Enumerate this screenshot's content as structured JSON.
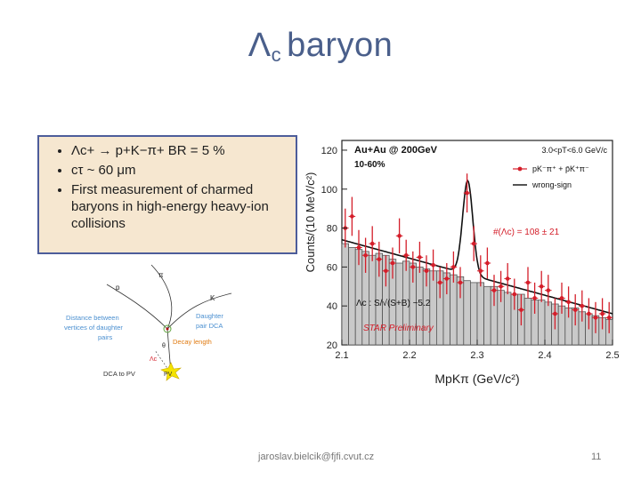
{
  "slide": {
    "title_symbol": "Λ",
    "title_subscript": "c",
    "title_text": "baryon",
    "footer_email": "jaroslav.bielcik@fjfi.cvut.cz",
    "page_number": "11"
  },
  "bullets": [
    {
      "text": "Λc+ → p+K−π+   BR = 5 %"
    },
    {
      "text": "cτ ~ 60 μm"
    },
    {
      "text": "First measurement of charmed baryons in high-energy heavy-ion collisions"
    }
  ],
  "diagram": {
    "labels": {
      "pi": "π",
      "p": "p",
      "k": "K",
      "dist": "Distance between vertices of daughter pairs",
      "dist_line1": "Distance between",
      "dist_line2": "vertices of daughter",
      "dist_line3": "pairs",
      "dca_pair_line1": "Daughter",
      "dca_pair_line2": "pair DCA",
      "theta": "θ",
      "decay_length": "Decay length",
      "lambda": "Λc",
      "dca_pv": "DCA to PV",
      "pv": "PV"
    },
    "colors": {
      "blue_text": "#4a8fd0",
      "orange_text": "#e07a10",
      "pv_star": "#f4e400"
    }
  },
  "chart_data": {
    "type": "bar",
    "title": "Au+Au @ 200GeV",
    "subtitle": "10-60%",
    "pt_range": "3.0<pT<6.0 GeV/c",
    "ylabel": "Counts/(10 MeV/c²)",
    "xlabel": "MpKπ (GeV/c²)",
    "xlim": [
      2.1,
      2.5
    ],
    "ylim": [
      20,
      125
    ],
    "xticks": [
      "2.1",
      "2.2",
      "2.3",
      "2.4",
      "2.5"
    ],
    "yticks": [
      "20",
      "40",
      "60",
      "80",
      "100",
      "120"
    ],
    "legend": [
      {
        "name": "pK⁻π⁺ + p̄K⁺π⁻",
        "color": "#d41e2a"
      },
      {
        "name": "wrong-sign",
        "color": "#555555"
      }
    ],
    "annotation_yield": "#(Λc) = 108 ± 21",
    "annotation_significance": "Λc :  S/√(S+B) ~5.2",
    "preliminary": "STAR Preliminary",
    "signal_points": {
      "x": [
        2.105,
        2.115,
        2.125,
        2.135,
        2.145,
        2.155,
        2.165,
        2.175,
        2.185,
        2.195,
        2.205,
        2.215,
        2.225,
        2.235,
        2.245,
        2.255,
        2.265,
        2.275,
        2.285,
        2.295,
        2.305,
        2.315,
        2.325,
        2.335,
        2.345,
        2.355,
        2.365,
        2.375,
        2.385,
        2.395,
        2.405,
        2.415,
        2.425,
        2.435,
        2.445,
        2.455,
        2.465,
        2.475,
        2.485,
        2.495
      ],
      "y": [
        80,
        86,
        70,
        66,
        72,
        64,
        58,
        62,
        76,
        66,
        60,
        65,
        58,
        61,
        52,
        54,
        60,
        52,
        98,
        72,
        58,
        62,
        48,
        50,
        54,
        46,
        38,
        52,
        44,
        50,
        48,
        36,
        44,
        42,
        38,
        40,
        36,
        34,
        36,
        34
      ],
      "err": [
        10,
        10,
        9,
        9,
        9,
        9,
        8,
        8,
        9,
        8,
        8,
        8,
        8,
        8,
        8,
        8,
        8,
        8,
        10,
        9,
        8,
        8,
        8,
        8,
        8,
        8,
        8,
        8,
        8,
        8,
        8,
        8,
        8,
        8,
        8,
        8,
        8,
        8,
        8,
        8
      ]
    },
    "wrong_sign": {
      "y": [
        72,
        70,
        69,
        68,
        66,
        67,
        66,
        64,
        62,
        63,
        62,
        60,
        59,
        58,
        58,
        57,
        56,
        55,
        53,
        52,
        52,
        50,
        50,
        48,
        47,
        46,
        46,
        44,
        43,
        43,
        42,
        41,
        40,
        39,
        39,
        37,
        36,
        35,
        34,
        33
      ]
    },
    "fit": {
      "a": 74,
      "b": -95,
      "peak_mu": 2.286,
      "peak_sigma": 0.0075,
      "peak_amp": 48
    },
    "colors": {
      "signal": "#d41e2a",
      "wrong_sign_fill": "#c9c9c9",
      "wrong_sign_line": "#555555",
      "fit": "#111111",
      "axis": "#222222",
      "preliminary": "#d41e2a"
    }
  }
}
